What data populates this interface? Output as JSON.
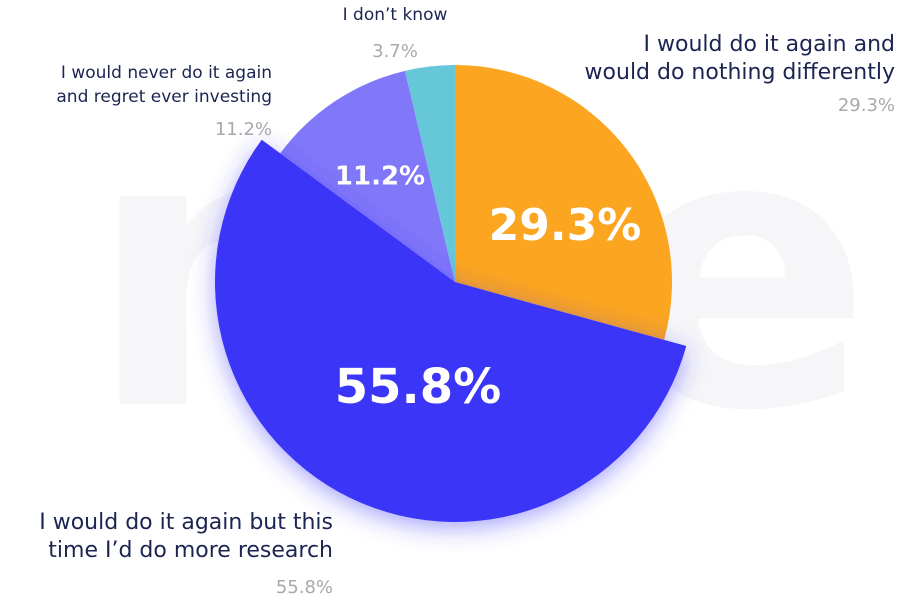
{
  "chart_data": {
    "type": "pie",
    "watermark": "mle",
    "categories": [
      [
        "I would do it again and",
        "would do nothing differently"
      ],
      [
        "I would do it again but this",
        "time I’d do more research"
      ],
      [
        "I would never do it again",
        "and regret ever investing"
      ],
      [
        "I don’t know"
      ]
    ],
    "values": [
      29.3,
      55.8,
      11.2,
      3.7
    ],
    "value_labels": [
      "29.3%",
      "55.8%",
      "11.2%",
      "3.7%"
    ],
    "colors": [
      "#fba521",
      "#3b34f8",
      "#8178f9",
      "#66c7d9"
    ]
  }
}
